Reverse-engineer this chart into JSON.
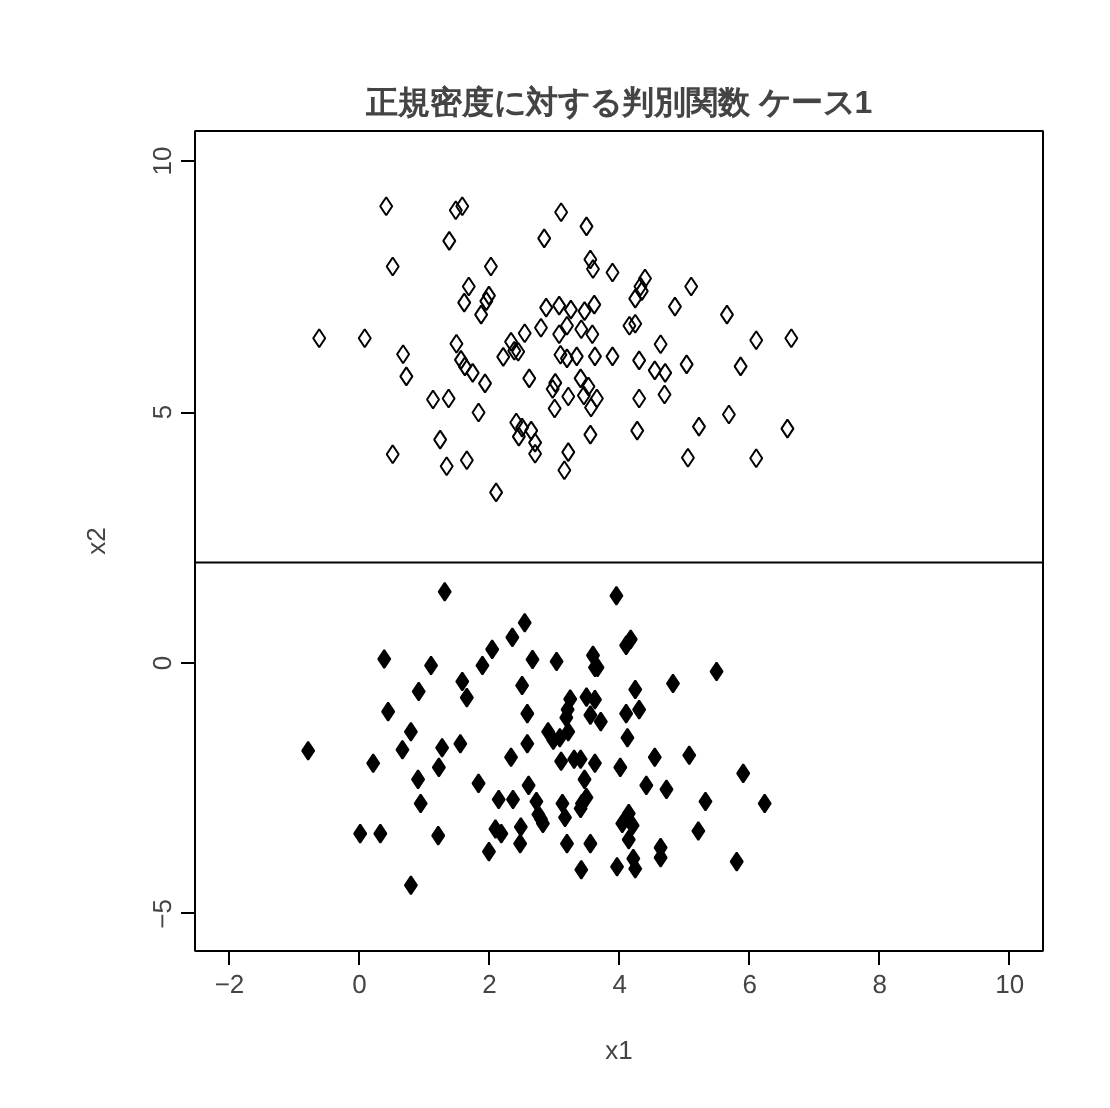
{
  "chart_data": {
    "type": "scatter",
    "title": "正規密度に対する判別関数 ケース1",
    "xlabel": "x1",
    "ylabel": "x2",
    "xlim": [
      -2.53,
      10.51
    ],
    "ylim": [
      -5.74,
      10.6
    ],
    "xticks": [
      -2,
      0,
      2,
      4,
      6,
      8,
      10
    ],
    "yticks": [
      -5,
      0,
      5,
      10
    ],
    "grid": false,
    "marker": "diamond",
    "ref_lines": [
      {
        "axis": "y",
        "value": 2,
        "color": "#000000",
        "line_style": "solid"
      }
    ],
    "series": [
      {
        "color": "#000000",
        "x": [
          0.41,
          1.48,
          1.58,
          1.38,
          2.84,
          0.51,
          2.02,
          1.68,
          1.99,
          1.95,
          1.61,
          1.87,
          2.87,
          -0.62,
          0.08,
          1.49,
          0.67,
          1.56,
          1.62,
          1.74,
          1.93,
          2.33,
          2.38,
          2.21,
          2.44,
          2.54,
          2.79,
          0.72,
          2.61,
          1.13,
          1.37,
          1.83,
          2.41,
          2.5,
          2.45,
          2.64,
          2.7,
          2.7,
          1.24,
          0.51,
          1.34,
          1.65,
          2.1,
          3.1,
          3.49,
          3.55,
          3.59,
          3.89,
          4.39,
          4.32,
          4.34,
          4.24,
          5.1,
          3.07,
          3.25,
          3.46,
          3.61,
          4.85,
          5.65,
          3.07,
          3.19,
          3.41,
          3.58,
          4.15,
          4.24,
          6.1,
          6.64,
          4.63,
          3.09,
          3.19,
          3.34,
          3.62,
          3.89,
          4.3,
          4.54,
          4.7,
          5.03,
          5.86,
          3.4,
          3.52,
          3.01,
          2.97,
          3.21,
          3.45,
          3.65,
          4.3,
          4.69,
          3.0,
          3.56,
          5.68,
          5.22,
          6.58,
          3.55,
          4.27,
          3.21,
          5.05,
          6.1,
          3.15
        ],
        "values": [
          9.1,
          9.02,
          9.1,
          8.41,
          8.46,
          7.9,
          7.9,
          7.5,
          7.32,
          7.21,
          7.18,
          6.94,
          7.08,
          6.47,
          6.47,
          6.36,
          6.15,
          6.04,
          5.91,
          5.78,
          5.57,
          6.4,
          6.22,
          6.1,
          6.2,
          6.57,
          6.68,
          5.71,
          5.67,
          5.25,
          5.27,
          4.99,
          4.79,
          4.69,
          4.51,
          4.63,
          4.39,
          4.17,
          4.45,
          4.16,
          3.92,
          4.04,
          3.4,
          8.98,
          8.7,
          8.04,
          7.85,
          7.78,
          7.66,
          7.5,
          7.41,
          7.26,
          7.5,
          7.12,
          7.04,
          7.01,
          7.14,
          7.1,
          6.94,
          6.55,
          6.72,
          6.65,
          6.55,
          6.72,
          6.76,
          6.43,
          6.47,
          6.35,
          6.14,
          6.07,
          6.11,
          6.11,
          6.11,
          6.03,
          5.83,
          5.78,
          5.95,
          5.91,
          5.67,
          5.51,
          5.58,
          5.46,
          5.31,
          5.33,
          5.27,
          5.27,
          5.35,
          5.07,
          5.09,
          4.95,
          4.71,
          4.67,
          4.55,
          4.63,
          4.2,
          4.09,
          4.08,
          3.84
        ]
      },
      {
        "color": "#000000",
        "x": [
          1.31,
          2.54,
          2.35,
          2.04,
          0.38,
          1.1,
          1.89,
          2.66,
          3.03,
          1.58,
          0.91,
          1.65,
          2.5,
          0.44,
          2.58,
          0.79,
          2.9,
          2.98,
          -0.79,
          0.66,
          1.27,
          1.55,
          2.58,
          2.33,
          0.21,
          1.22,
          0.9,
          1.83,
          2.6,
          0.94,
          2.14,
          2.36,
          2.72,
          2.75,
          2.79,
          2.82,
          0.01,
          0.32,
          1.21,
          2.09,
          2.18,
          2.48,
          2.47,
          1.99,
          0.79,
          3.95,
          4.17,
          4.1,
          3.59,
          3.62,
          3.66,
          5.49,
          4.82,
          4.24,
          3.24,
          3.49,
          3.62,
          3.2,
          3.18,
          3.55,
          3.71,
          4.1,
          4.3,
          3.08,
          3.21,
          4.12,
          3.1,
          3.3,
          3.4,
          3.62,
          4.01,
          4.54,
          5.07,
          5.9,
          3.46,
          4.41,
          4.72,
          5.32,
          6.23,
          3.12,
          3.49,
          3.42,
          3.4,
          3.16,
          4.14,
          4.04,
          4.2,
          5.21,
          3.19,
          3.55,
          4.14,
          4.63,
          4.63,
          5.8,
          4.21,
          3.96,
          4.24,
          3.41
        ],
        "values": [
          1.42,
          0.8,
          0.51,
          0.27,
          0.08,
          -0.05,
          -0.05,
          0.07,
          0.03,
          -0.37,
          -0.57,
          -0.69,
          -0.45,
          -0.97,
          -1.01,
          -1.37,
          -1.37,
          -1.54,
          -1.75,
          -1.73,
          -1.69,
          -1.61,
          -1.61,
          -1.88,
          -2.0,
          -2.08,
          -2.32,
          -2.4,
          -2.44,
          -2.8,
          -2.72,
          -2.72,
          -2.76,
          -3.02,
          -3.11,
          -3.2,
          -3.4,
          -3.4,
          -3.44,
          -3.31,
          -3.4,
          -3.27,
          -3.6,
          -3.76,
          -4.43,
          1.34,
          0.47,
          0.35,
          0.15,
          -0.09,
          -0.09,
          -0.17,
          -0.41,
          -0.53,
          -0.72,
          -0.68,
          -0.73,
          -0.93,
          -1.09,
          -1.04,
          -1.17,
          -1.01,
          -0.93,
          -1.49,
          -1.37,
          -1.49,
          -1.96,
          -1.92,
          -1.92,
          -2.0,
          -2.08,
          -1.88,
          -1.84,
          -2.2,
          -2.32,
          -2.44,
          -2.52,
          -2.76,
          -2.8,
          -2.8,
          -2.68,
          -2.8,
          -2.9,
          -3.08,
          -3.0,
          -3.2,
          -3.24,
          -3.35,
          -3.6,
          -3.6,
          -3.52,
          -3.68,
          -3.88,
          -3.96,
          -3.9,
          -4.06,
          -4.1,
          -4.12
        ]
      }
    ]
  }
}
